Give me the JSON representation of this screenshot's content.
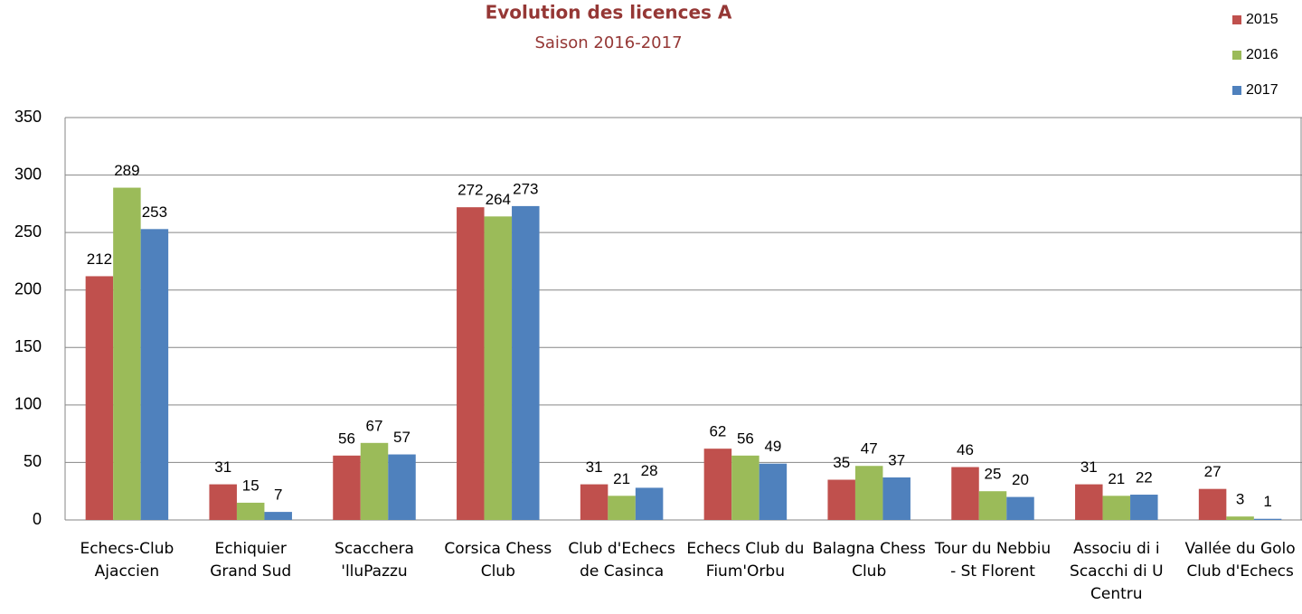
{
  "chart_data": {
    "type": "bar",
    "title": "Evolution des licences A",
    "subtitle": "Saison 2016-2017",
    "categories": [
      "Echecs-Club Ajaccien",
      "Echiquier Grand Sud",
      "Scacchera 'lluPazzu",
      "Corsica Chess Club",
      "Club d'Echecs de Casinca",
      "Echecs Club du Fium'Orbu",
      "Balagna Chess Club",
      "Tour du Nebbiu - St Florent",
      "Associu di i Scacchi di U Centru",
      "Vallée du Golo Club d'Echecs"
    ],
    "series": [
      {
        "name": "2015",
        "color": "#c0504d",
        "values": [
          212,
          31,
          56,
          272,
          31,
          62,
          35,
          46,
          31,
          27
        ]
      },
      {
        "name": "2016",
        "color": "#9bbb59",
        "values": [
          289,
          15,
          67,
          264,
          21,
          56,
          47,
          25,
          21,
          3
        ]
      },
      {
        "name": "2017",
        "color": "#4f81bd",
        "values": [
          253,
          7,
          57,
          273,
          28,
          49,
          37,
          20,
          22,
          1
        ]
      }
    ],
    "ylim": [
      0,
      350
    ],
    "yticks": [
      0,
      50,
      100,
      150,
      200,
      250,
      300,
      350
    ],
    "grid": true,
    "legend": "top-right"
  }
}
